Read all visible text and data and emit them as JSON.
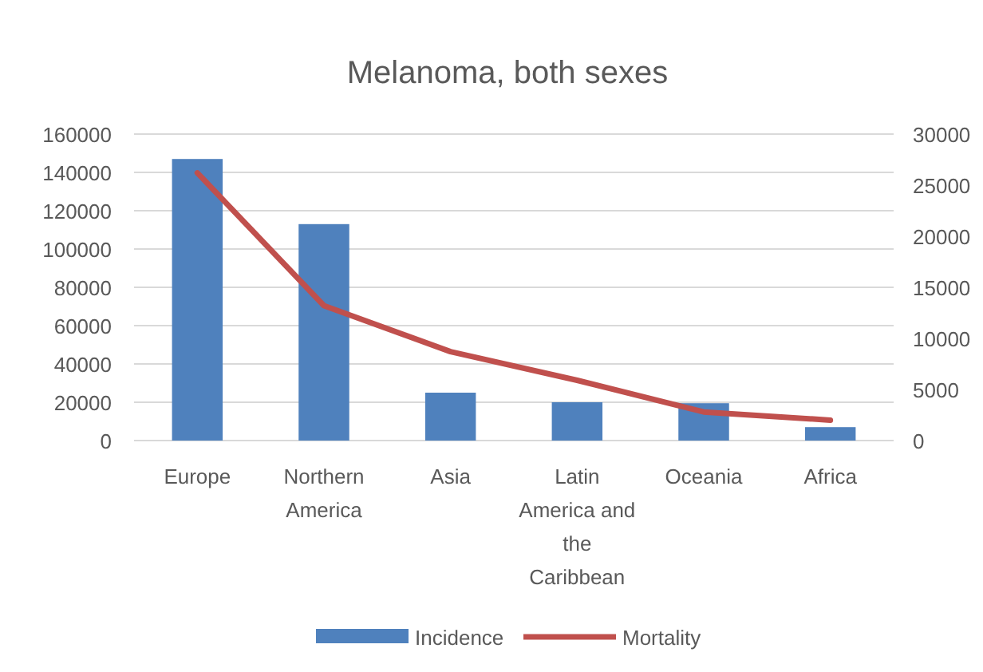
{
  "chart_data": {
    "type": "bar",
    "title": "Melanoma, both sexes",
    "categories": [
      "Europe",
      "Northern America",
      "Asia",
      "Latin America and the Caribbean",
      "Oceania",
      "Africa"
    ],
    "series": [
      {
        "name": "Incidence",
        "color": "#4f81bd",
        "values": [
          147000,
          113000,
          25000,
          20000,
          19500,
          7000
        ]
      },
      {
        "name": "Mortality",
        "type": "line",
        "axis": "y2",
        "color": "#c0504d",
        "values": [
          26200,
          13200,
          8700,
          5900,
          2800,
          2000
        ]
      }
    ],
    "ylim": [
      0,
      160000
    ],
    "yticks": [
      0,
      20000,
      40000,
      60000,
      80000,
      100000,
      120000,
      140000,
      160000
    ],
    "y2lim": [
      0,
      30000
    ],
    "y2ticks": [
      0,
      5000,
      10000,
      15000,
      20000,
      25000,
      30000
    ],
    "grid": "y",
    "legend": "bottom",
    "marker": "none"
  }
}
